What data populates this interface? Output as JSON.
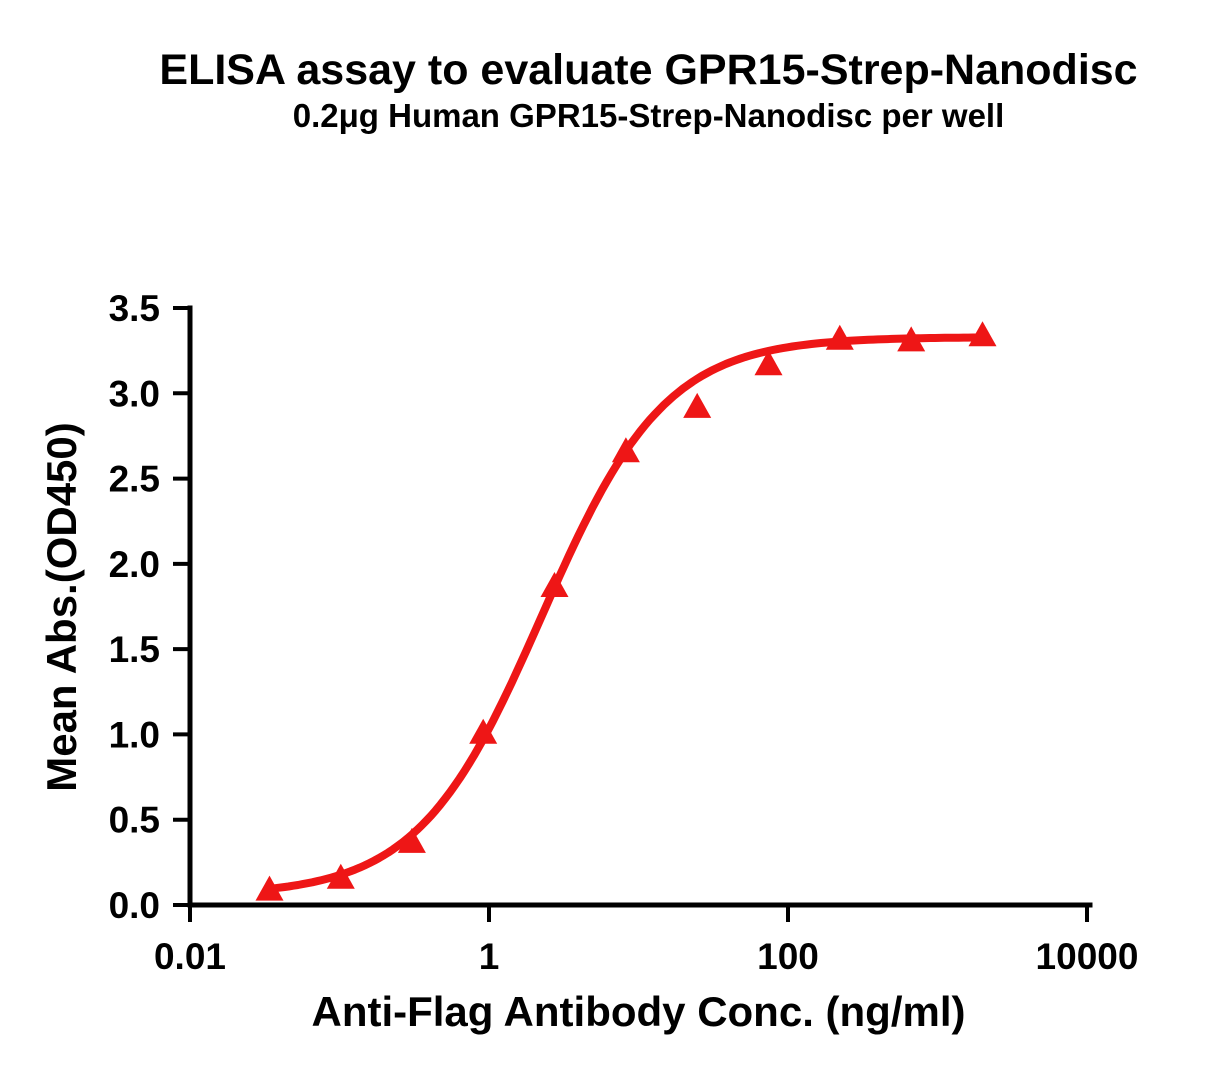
{
  "chart_data": {
    "type": "scatter",
    "title": "ELISA assay to evaluate GPR15-Strep-Nanodisc",
    "subtitle": "0.2μg Human GPR15-Strep-Nanodisc per well",
    "xlabel": "Anti-Flag Antibody Conc. (ng/ml)",
    "ylabel": "Mean Abs.(OD450)",
    "x_scale": "log",
    "xlim": [
      0.01,
      10000
    ],
    "ylim": [
      0.0,
      3.5
    ],
    "x_ticks": [
      0.01,
      1,
      100,
      10000
    ],
    "x_tick_labels": [
      "0.01",
      "1",
      "100",
      "10000"
    ],
    "y_ticks": [
      0.0,
      0.5,
      1.0,
      1.5,
      2.0,
      2.5,
      3.0,
      3.5
    ],
    "y_tick_labels": [
      "0.0",
      "0.5",
      "1.0",
      "1.5",
      "2.0",
      "2.5",
      "3.0",
      "3.5"
    ],
    "grid": false,
    "legend_position": "none",
    "axis_color": "#000000",
    "series": [
      {
        "name": "Human GPR15-Strep-Nanodisc",
        "marker": "triangle-up",
        "color": "#EE1616",
        "x": [
          0.034,
          0.102,
          0.305,
          0.914,
          2.743,
          8.23,
          24.69,
          74.07,
          222.2,
          666.7,
          2000
        ],
        "y": [
          0.09,
          0.16,
          0.37,
          1.01,
          1.87,
          2.66,
          2.92,
          3.17,
          3.32,
          3.31,
          3.34
        ],
        "fit": {
          "model": "4PL",
          "bottom": 0.055,
          "top": 3.33,
          "ec50": 2.25,
          "hill": 1.05
        }
      }
    ]
  }
}
